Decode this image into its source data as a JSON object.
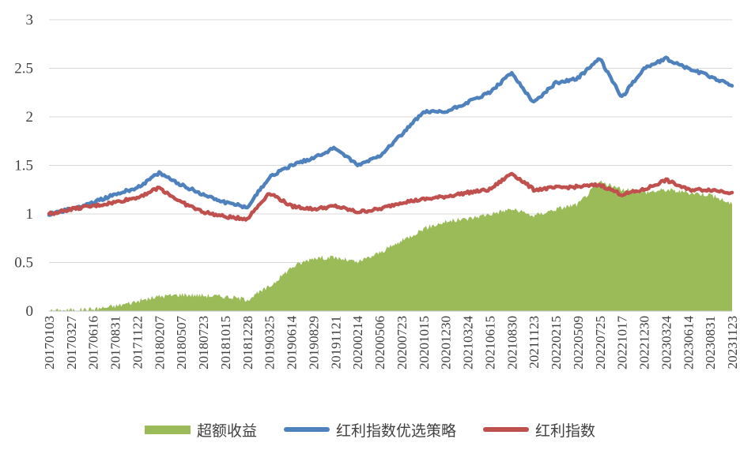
{
  "chart_data": {
    "type": "line",
    "title": "",
    "xlabel": "",
    "ylabel": "",
    "ylim": [
      0,
      3
    ],
    "yticks": [
      "0",
      "0.5",
      "1",
      "1.5",
      "2",
      "2.5",
      "3"
    ],
    "x_tick_labels": [
      "20170103",
      "20170327",
      "20170616",
      "20170831",
      "20171122",
      "20180207",
      "20180507",
      "20180723",
      "20181015",
      "20181228",
      "20190325",
      "20190614",
      "20190829",
      "20191121",
      "20200214",
      "20200506",
      "20200723",
      "20201015",
      "20201230",
      "20210324",
      "20210615",
      "20210830",
      "20211123",
      "20220215",
      "20220509",
      "20220725",
      "20221017",
      "20221230",
      "20230324",
      "20230614",
      "20230831",
      "20231123"
    ],
    "grid": "horizontal",
    "legend_position": "bottom",
    "series": [
      {
        "name": "超额收益",
        "kind": "area",
        "color": "#9bbb59",
        "values": [
          0,
          0.01,
          0.02,
          0.05,
          0.1,
          0.15,
          0.17,
          0.16,
          0.15,
          0.12,
          0.25,
          0.45,
          0.55,
          0.55,
          0.5,
          0.6,
          0.72,
          0.85,
          0.92,
          0.95,
          1.0,
          1.05,
          0.98,
          1.05,
          1.1,
          1.33,
          1.25,
          1.22,
          1.25,
          1.22,
          1.2,
          1.1
        ]
      },
      {
        "name": "红利指数优选策略",
        "kind": "line",
        "color": "#4f81bd",
        "values": [
          1.0,
          1.05,
          1.12,
          1.2,
          1.27,
          1.42,
          1.3,
          1.2,
          1.12,
          1.07,
          1.38,
          1.5,
          1.58,
          1.68,
          1.5,
          1.6,
          1.82,
          2.05,
          2.05,
          2.15,
          2.25,
          2.45,
          2.15,
          2.35,
          2.4,
          2.6,
          2.2,
          2.5,
          2.6,
          2.5,
          2.42,
          2.32
        ]
      },
      {
        "name": "红利指数",
        "kind": "line",
        "color": "#c0504d",
        "values": [
          1.0,
          1.05,
          1.08,
          1.12,
          1.17,
          1.27,
          1.12,
          1.02,
          0.97,
          0.95,
          1.22,
          1.08,
          1.05,
          1.08,
          1.02,
          1.05,
          1.12,
          1.15,
          1.18,
          1.22,
          1.25,
          1.42,
          1.25,
          1.27,
          1.28,
          1.3,
          1.2,
          1.25,
          1.35,
          1.25,
          1.25,
          1.22
        ]
      }
    ]
  }
}
